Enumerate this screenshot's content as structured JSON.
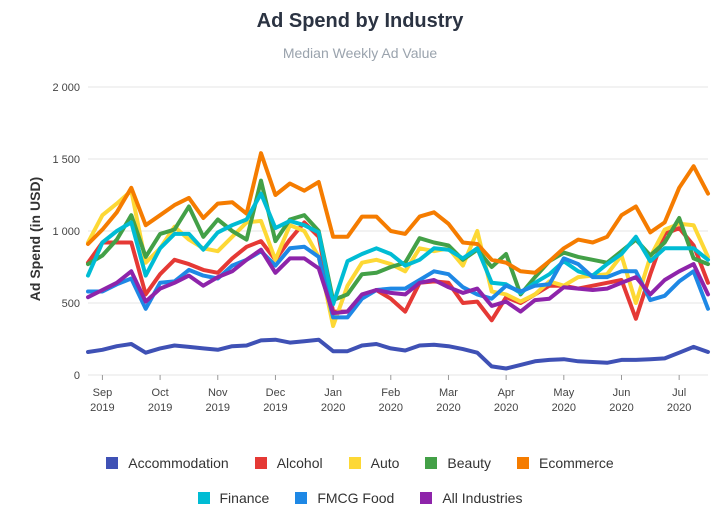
{
  "chart_data": {
    "type": "line",
    "title": "Ad Spend by Industry",
    "subtitle": "Median Weekly Ad Value",
    "ylabel": "Ad Spend (in USD)",
    "xlabel": "",
    "ylim": [
      0,
      2000
    ],
    "yticks": [
      {
        "value": 0,
        "label": "0"
      },
      {
        "value": 500,
        "label": "500"
      },
      {
        "value": 1000,
        "label": "1 000"
      },
      {
        "value": 1500,
        "label": "1 500"
      },
      {
        "value": 2000,
        "label": "2 000"
      }
    ],
    "xticks": [
      {
        "index": 1,
        "line1": "Sep",
        "line2": "2019"
      },
      {
        "index": 5,
        "line1": "Oct",
        "line2": "2019"
      },
      {
        "index": 9,
        "line1": "Nov",
        "line2": "2019"
      },
      {
        "index": 13,
        "line1": "Dec",
        "line2": "2019"
      },
      {
        "index": 17,
        "line1": "Jan",
        "line2": "2020"
      },
      {
        "index": 21,
        "line1": "Feb",
        "line2": "2020"
      },
      {
        "index": 25,
        "line1": "Mar",
        "line2": "2020"
      },
      {
        "index": 29,
        "line1": "Apr",
        "line2": "2020"
      },
      {
        "index": 33,
        "line1": "May",
        "line2": "2020"
      },
      {
        "index": 37,
        "line1": "Jun",
        "line2": "2020"
      },
      {
        "index": 41,
        "line1": "Jul",
        "line2": "2020"
      }
    ],
    "grid": true,
    "legend_position": "bottom",
    "series": [
      {
        "name": "Accommodation",
        "color": "#3f51b5",
        "values": [
          160,
          175,
          200,
          215,
          155,
          185,
          205,
          195,
          185,
          175,
          200,
          205,
          240,
          245,
          225,
          235,
          245,
          165,
          165,
          205,
          215,
          185,
          170,
          205,
          210,
          200,
          180,
          155,
          60,
          45,
          70,
          95,
          105,
          110,
          95,
          90,
          85,
          105,
          105,
          110,
          115,
          155,
          195,
          160
        ]
      },
      {
        "name": "Alcohol",
        "color": "#e53935",
        "values": [
          780,
          920,
          920,
          920,
          560,
          700,
          800,
          770,
          730,
          710,
          810,
          890,
          930,
          800,
          940,
          1060,
          960,
          440,
          440,
          550,
          590,
          530,
          440,
          640,
          650,
          640,
          500,
          510,
          380,
          540,
          500,
          560,
          620,
          620,
          600,
          620,
          640,
          660,
          390,
          700,
          980,
          1020,
          900,
          640
        ]
      },
      {
        "name": "Auto",
        "color": "#fdd835",
        "values": [
          920,
          1110,
          1190,
          1280,
          780,
          880,
          1030,
          940,
          880,
          860,
          960,
          1060,
          1070,
          800,
          1040,
          1000,
          820,
          340,
          620,
          780,
          800,
          770,
          720,
          880,
          860,
          880,
          760,
          1000,
          580,
          560,
          510,
          560,
          650,
          620,
          680,
          690,
          700,
          830,
          500,
          820,
          1010,
          1050,
          1040,
          820
        ]
      },
      {
        "name": "Beauty",
        "color": "#43a047",
        "values": [
          770,
          830,
          940,
          1110,
          820,
          980,
          1010,
          1170,
          960,
          1080,
          1000,
          940,
          1350,
          930,
          1080,
          1110,
          1000,
          520,
          560,
          700,
          710,
          750,
          780,
          950,
          920,
          900,
          800,
          870,
          750,
          840,
          560,
          680,
          790,
          850,
          820,
          800,
          780,
          860,
          940,
          830,
          920,
          1090,
          810,
          770
        ]
      },
      {
        "name": "Ecommerce",
        "color": "#f57c00",
        "values": [
          910,
          1010,
          1130,
          1300,
          1040,
          1110,
          1180,
          1230,
          1090,
          1190,
          1200,
          1120,
          1540,
          1250,
          1330,
          1280,
          1340,
          960,
          960,
          1100,
          1100,
          1000,
          980,
          1100,
          1130,
          1050,
          920,
          910,
          800,
          780,
          720,
          710,
          790,
          880,
          940,
          920,
          960,
          1110,
          1170,
          990,
          1060,
          1300,
          1450,
          1260
        ]
      },
      {
        "name": "Finance",
        "color": "#00bcd4",
        "values": [
          690,
          920,
          1000,
          1060,
          690,
          880,
          980,
          980,
          870,
          990,
          1040,
          1080,
          1260,
          1020,
          1070,
          1040,
          990,
          490,
          790,
          840,
          880,
          840,
          760,
          800,
          880,
          870,
          810,
          880,
          640,
          630,
          570,
          640,
          700,
          790,
          720,
          690,
          770,
          840,
          960,
          790,
          880,
          880,
          880,
          800
        ]
      },
      {
        "name": "FMCG Food",
        "color": "#1e88e5",
        "values": [
          580,
          580,
          630,
          670,
          460,
          640,
          650,
          730,
          690,
          670,
          760,
          800,
          860,
          760,
          880,
          890,
          820,
          400,
          400,
          530,
          590,
          600,
          600,
          660,
          720,
          700,
          610,
          560,
          530,
          620,
          580,
          620,
          630,
          810,
          770,
          680,
          680,
          720,
          720,
          520,
          550,
          650,
          720,
          460
        ]
      },
      {
        "name": "All Industries",
        "color": "#8e24aa",
        "values": [
          540,
          590,
          640,
          720,
          510,
          600,
          640,
          690,
          620,
          680,
          720,
          800,
          870,
          710,
          810,
          810,
          740,
          430,
          440,
          560,
          590,
          570,
          560,
          640,
          660,
          610,
          570,
          600,
          480,
          510,
          440,
          520,
          530,
          610,
          600,
          590,
          600,
          640,
          680,
          560,
          660,
          720,
          770,
          560
        ]
      }
    ]
  }
}
